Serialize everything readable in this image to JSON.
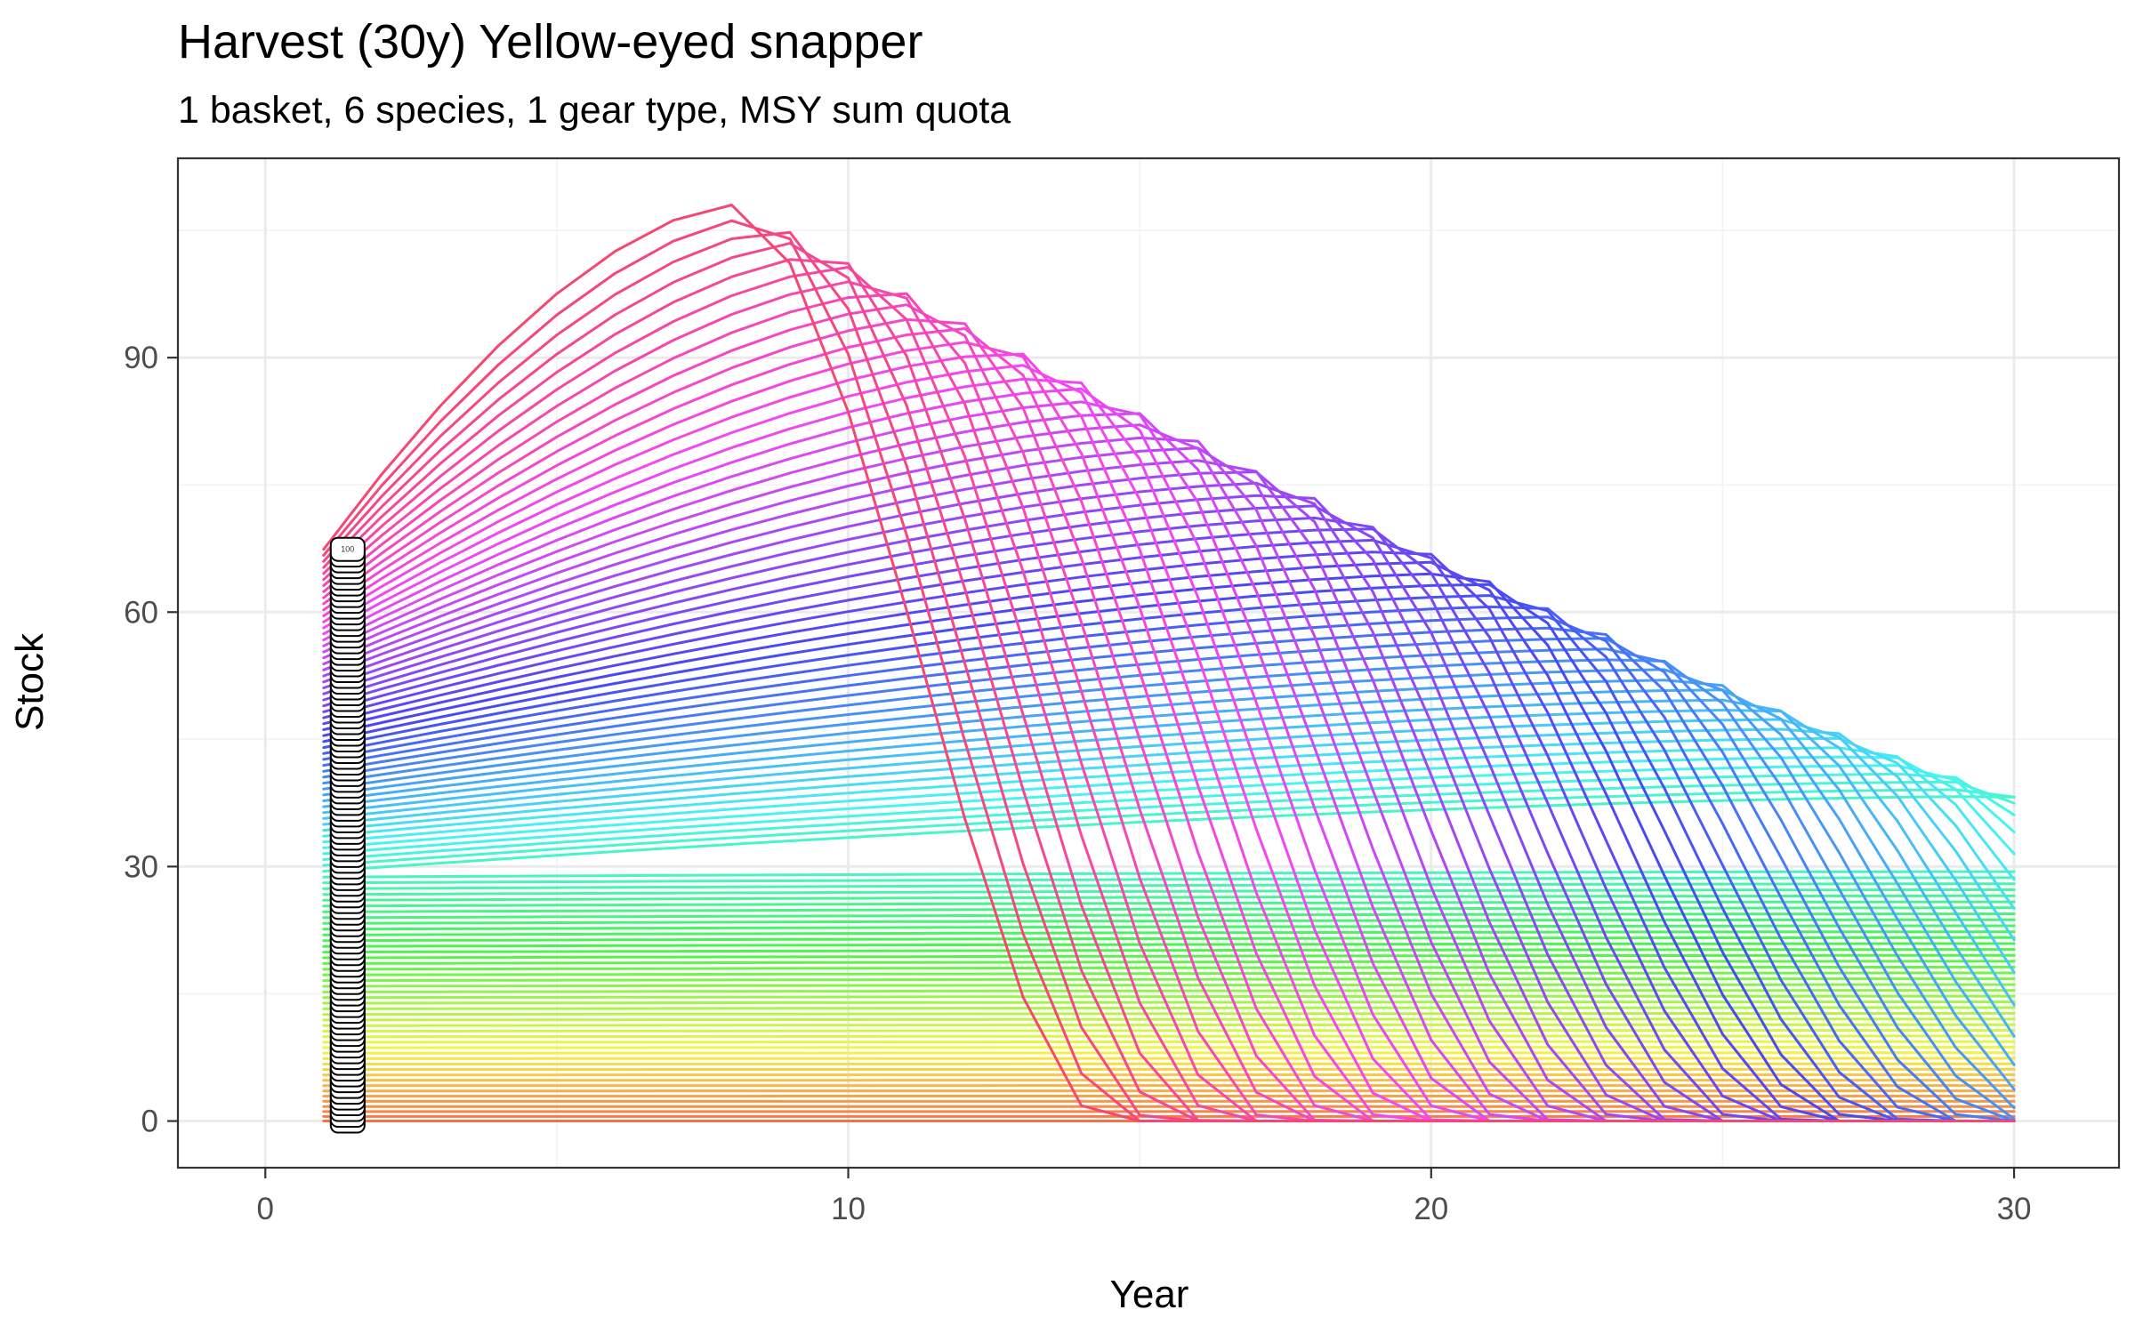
{
  "chart_data": {
    "type": "line",
    "title": "Harvest (30y) Yellow-eyed snapper",
    "subtitle": "1 basket, 6 species, 1 gear type, MSY sum quota",
    "xlabel": "Year",
    "ylabel": "Stock",
    "xlim": [
      -1.5,
      31.8
    ],
    "ylim": [
      -5.5,
      113.5
    ],
    "x_ticks": [
      0,
      10,
      20,
      30
    ],
    "y_ticks": [
      0,
      30,
      60,
      90
    ],
    "x_tick_labels": [
      "0",
      "10",
      "20",
      "30"
    ],
    "y_tick_labels": [
      "0",
      "30",
      "60",
      "90"
    ],
    "grid": true,
    "legend": "none",
    "series_count": 100,
    "series_name_range": [
      1,
      100
    ],
    "years": [
      1,
      30
    ],
    "start_stock_range": [
      0,
      67.4
    ],
    "note_label_shown": "100",
    "colors": {
      "hue_start": "#f8766d",
      "hue_mid_green": "#00ba38",
      "hue_mid_blue": "#00b0f6",
      "hue_end": "#ff61c3",
      "label_box_fill": "#ffffff",
      "label_box_stroke": "#000000"
    }
  }
}
